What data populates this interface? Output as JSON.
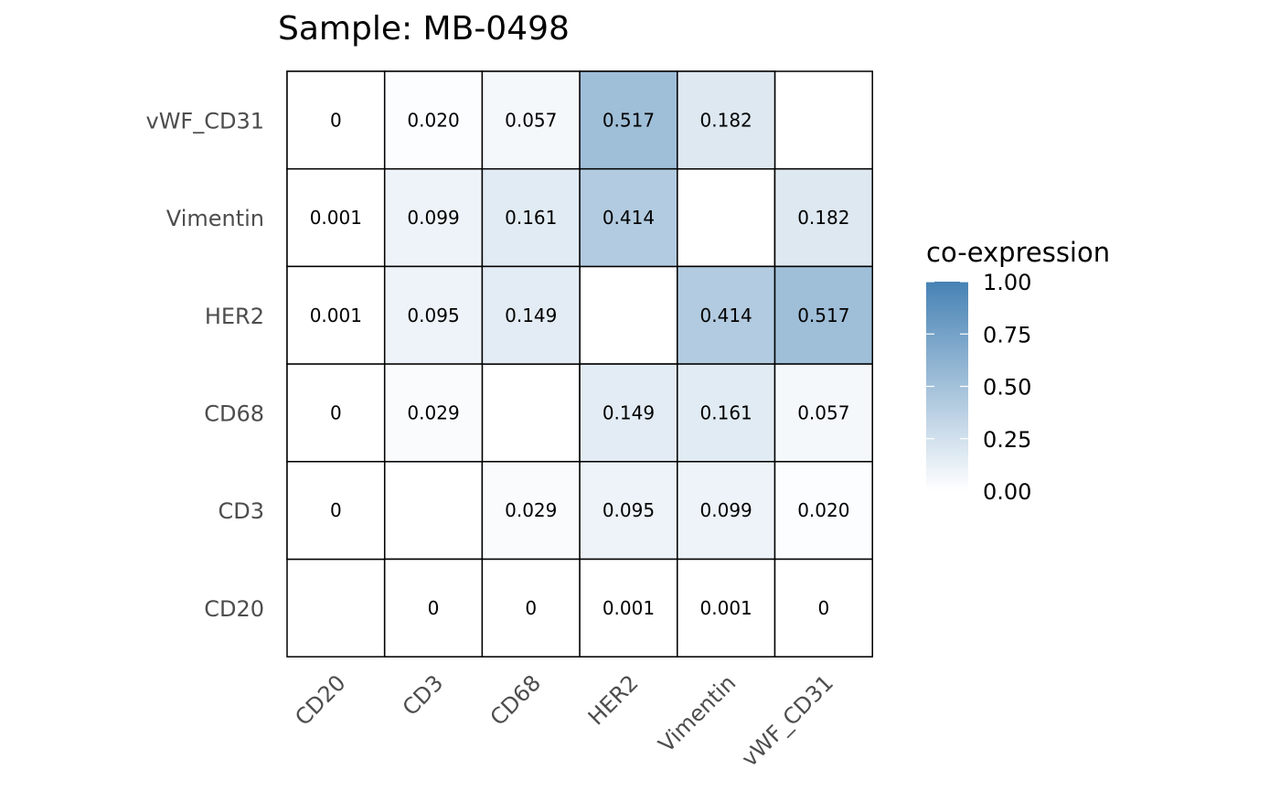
{
  "chart_data": {
    "type": "heatmap",
    "title": "Sample: MB-0498",
    "xlabel": "",
    "ylabel": "",
    "x_categories": [
      "CD20",
      "CD3",
      "CD68",
      "HER2",
      "Vimentin",
      "vWF_CD31"
    ],
    "y_categories": [
      "CD20",
      "CD3",
      "CD68",
      "HER2",
      "Vimentin",
      "vWF_CD31"
    ],
    "cells": [
      {
        "x": "CD20",
        "y": "vWF_CD31",
        "value": 0,
        "label": "0"
      },
      {
        "x": "CD3",
        "y": "vWF_CD31",
        "value": 0.02,
        "label": "0.020"
      },
      {
        "x": "CD68",
        "y": "vWF_CD31",
        "value": 0.057,
        "label": "0.057"
      },
      {
        "x": "HER2",
        "y": "vWF_CD31",
        "value": 0.517,
        "label": "0.517"
      },
      {
        "x": "Vimentin",
        "y": "vWF_CD31",
        "value": 0.182,
        "label": "0.182"
      },
      {
        "x": "CD20",
        "y": "Vimentin",
        "value": 0.001,
        "label": "0.001"
      },
      {
        "x": "CD3",
        "y": "Vimentin",
        "value": 0.099,
        "label": "0.099"
      },
      {
        "x": "CD68",
        "y": "Vimentin",
        "value": 0.161,
        "label": "0.161"
      },
      {
        "x": "HER2",
        "y": "Vimentin",
        "value": 0.414,
        "label": "0.414"
      },
      {
        "x": "vWF_CD31",
        "y": "Vimentin",
        "value": 0.182,
        "label": "0.182"
      },
      {
        "x": "CD20",
        "y": "HER2",
        "value": 0.001,
        "label": "0.001"
      },
      {
        "x": "CD3",
        "y": "HER2",
        "value": 0.095,
        "label": "0.095"
      },
      {
        "x": "CD68",
        "y": "HER2",
        "value": 0.149,
        "label": "0.149"
      },
      {
        "x": "Vimentin",
        "y": "HER2",
        "value": 0.414,
        "label": "0.414"
      },
      {
        "x": "vWF_CD31",
        "y": "HER2",
        "value": 0.517,
        "label": "0.517"
      },
      {
        "x": "CD20",
        "y": "CD68",
        "value": 0,
        "label": "0"
      },
      {
        "x": "CD3",
        "y": "CD68",
        "value": 0.029,
        "label": "0.029"
      },
      {
        "x": "HER2",
        "y": "CD68",
        "value": 0.149,
        "label": "0.149"
      },
      {
        "x": "Vimentin",
        "y": "CD68",
        "value": 0.161,
        "label": "0.161"
      },
      {
        "x": "vWF_CD31",
        "y": "CD68",
        "value": 0.057,
        "label": "0.057"
      },
      {
        "x": "CD20",
        "y": "CD3",
        "value": 0,
        "label": "0"
      },
      {
        "x": "CD68",
        "y": "CD3",
        "value": 0.029,
        "label": "0.029"
      },
      {
        "x": "HER2",
        "y": "CD3",
        "value": 0.095,
        "label": "0.095"
      },
      {
        "x": "Vimentin",
        "y": "CD3",
        "value": 0.099,
        "label": "0.099"
      },
      {
        "x": "vWF_CD31",
        "y": "CD3",
        "value": 0.02,
        "label": "0.020"
      },
      {
        "x": "CD3",
        "y": "CD20",
        "value": 0,
        "label": "0"
      },
      {
        "x": "CD68",
        "y": "CD20",
        "value": 0,
        "label": "0"
      },
      {
        "x": "HER2",
        "y": "CD20",
        "value": 0.001,
        "label": "0.001"
      },
      {
        "x": "Vimentin",
        "y": "CD20",
        "value": 0.001,
        "label": "0.001"
      },
      {
        "x": "vWF_CD31",
        "y": "CD20",
        "value": 0,
        "label": "0"
      }
    ],
    "legend": {
      "title": "co-expression",
      "placement": "right",
      "range": [
        0,
        1
      ],
      "ticks": [
        1.0,
        0.75,
        0.5,
        0.25,
        0.0
      ],
      "tick_labels": [
        "1.00",
        "0.75",
        "0.50",
        "0.25",
        "0.00"
      ]
    },
    "colors": {
      "low": "#ffffff",
      "high": "#4682b4",
      "cell_border": "#000000",
      "axis_text": "#4d4d4d",
      "cell_text": "#000000"
    },
    "grid": false
  }
}
